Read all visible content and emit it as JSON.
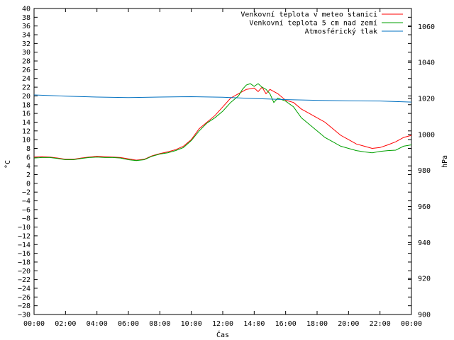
{
  "chart_data": {
    "type": "line",
    "xlabel": "Čas",
    "ylabel": "°C",
    "y2label": "hPa",
    "x_ticks": [
      "00:00",
      "02:00",
      "04:00",
      "06:00",
      "08:00",
      "10:00",
      "12:00",
      "14:00",
      "16:00",
      "18:00",
      "20:00",
      "22:00",
      "00:00"
    ],
    "xlim_hours": [
      0,
      24
    ],
    "ylim": [
      -30,
      40
    ],
    "y_tick_step": 2,
    "y2lim": [
      900,
      1070
    ],
    "y2_ticks": [
      900,
      920,
      940,
      960,
      980,
      1000,
      1020,
      1040,
      1060
    ],
    "grid": false,
    "legend_position": "top-right",
    "series": [
      {
        "name": "Venkovní teplota v meteo stanici",
        "axis": "left",
        "color": "#ff0000",
        "x": [
          0,
          0.5,
          1,
          1.5,
          2,
          2.5,
          3,
          3.5,
          4,
          4.5,
          5,
          5.5,
          6,
          6.5,
          7,
          7.5,
          8,
          8.5,
          9,
          9.5,
          10,
          10.5,
          11,
          11.5,
          12,
          12.5,
          13,
          13.5,
          14,
          14.25,
          14.5,
          14.75,
          15,
          15.5,
          16,
          16.5,
          17,
          17.5,
          18,
          18.5,
          19,
          19.5,
          20,
          20.5,
          21,
          21.5,
          22,
          22.5,
          23,
          23.5,
          24
        ],
        "values": [
          6.0,
          6.1,
          6.0,
          5.8,
          5.5,
          5.5,
          5.8,
          6.0,
          6.2,
          6.1,
          6.0,
          5.9,
          5.6,
          5.3,
          5.5,
          6.3,
          6.8,
          7.2,
          7.7,
          8.5,
          10.0,
          12.5,
          14.0,
          15.5,
          17.5,
          19.5,
          20.5,
          21.5,
          21.8,
          21.0,
          22.0,
          20.5,
          21.5,
          20.5,
          19.0,
          18.5,
          17.0,
          16.0,
          15.0,
          14.0,
          12.5,
          11.0,
          10.0,
          9.0,
          8.5,
          8.0,
          8.2,
          8.8,
          9.5,
          10.5,
          11.0
        ]
      },
      {
        "name": "Venkovní teplota 5 cm nad zemí",
        "axis": "left",
        "color": "#00a000",
        "x": [
          0,
          0.5,
          1,
          1.5,
          2,
          2.5,
          3,
          3.5,
          4,
          4.5,
          5,
          5.5,
          6,
          6.5,
          7,
          7.5,
          8,
          8.5,
          9,
          9.5,
          10,
          10.5,
          11,
          11.5,
          12,
          12.5,
          13,
          13.25,
          13.5,
          13.75,
          14,
          14.25,
          14.5,
          14.75,
          15,
          15.25,
          15.5,
          16,
          16.5,
          17,
          17.5,
          18,
          18.5,
          19,
          19.5,
          20,
          20.5,
          21,
          21.5,
          22,
          22.5,
          23,
          23.5,
          24
        ],
        "values": [
          5.8,
          5.9,
          5.9,
          5.7,
          5.4,
          5.4,
          5.7,
          5.9,
          6.0,
          5.9,
          5.9,
          5.8,
          5.4,
          5.2,
          5.4,
          6.2,
          6.7,
          7.0,
          7.5,
          8.2,
          9.8,
          12.0,
          13.8,
          15.0,
          16.5,
          18.5,
          20.0,
          21.5,
          22.5,
          22.8,
          22.2,
          22.8,
          22.0,
          21.5,
          20.5,
          18.5,
          19.5,
          18.8,
          17.5,
          15.0,
          13.5,
          12.0,
          10.5,
          9.5,
          8.5,
          8.0,
          7.5,
          7.2,
          7.0,
          7.3,
          7.5,
          7.6,
          8.5,
          8.8
        ]
      },
      {
        "name": "Atmosférický tlak",
        "axis": "right",
        "color": "#0070c0",
        "x": [
          0,
          2,
          4,
          6,
          8,
          10,
          12,
          14,
          16,
          18,
          20,
          22,
          24
        ],
        "values": [
          1022.0,
          1021.3,
          1020.8,
          1020.5,
          1020.8,
          1021.0,
          1020.7,
          1020.0,
          1019.4,
          1019.0,
          1018.7,
          1018.6,
          1018.0
        ]
      }
    ]
  }
}
